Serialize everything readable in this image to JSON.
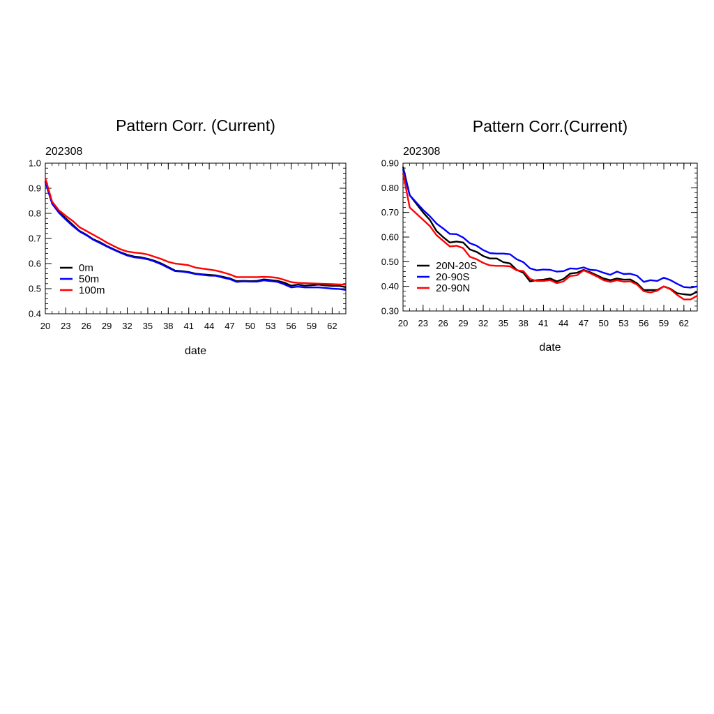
{
  "chart_data": [
    {
      "type": "line",
      "title": "Pattern Corr. (Current)",
      "subtitle": "202308",
      "xlabel": "date",
      "ylabel": "",
      "xlim": [
        20,
        64
      ],
      "ylim": [
        0.4,
        1.0
      ],
      "xticks": [
        20,
        23,
        26,
        29,
        32,
        35,
        38,
        41,
        44,
        47,
        50,
        53,
        56,
        59,
        62
      ],
      "yticks": [
        0.4,
        0.5,
        0.6,
        0.7,
        0.8,
        0.9,
        1.0
      ],
      "ytick_labels": [
        "0.4",
        "0.5",
        "0.6",
        "0.7",
        "0.8",
        "0.9",
        "1.0"
      ],
      "grid": false,
      "legend": "lower-left",
      "x": [
        20,
        21,
        22,
        23,
        24,
        25,
        26,
        27,
        28,
        29,
        30,
        31,
        32,
        33,
        34,
        35,
        36,
        37,
        38,
        39,
        40,
        41,
        42,
        43,
        44,
        45,
        46,
        47,
        48,
        49,
        50,
        51,
        52,
        53,
        54,
        55,
        56,
        57,
        58,
        59,
        60,
        61,
        62,
        63,
        64
      ],
      "series": [
        {
          "name": "0m",
          "color": "#000000",
          "values": [
            0.93,
            0.84,
            0.805,
            0.78,
            0.755,
            0.73,
            0.715,
            0.697,
            0.685,
            0.67,
            0.657,
            0.645,
            0.635,
            0.628,
            0.625,
            0.619,
            0.611,
            0.6,
            0.586,
            0.572,
            0.57,
            0.566,
            0.56,
            0.557,
            0.555,
            0.553,
            0.547,
            0.541,
            0.53,
            0.531,
            0.53,
            0.531,
            0.537,
            0.534,
            0.531,
            0.524,
            0.512,
            0.516,
            0.512,
            0.514,
            0.516,
            0.513,
            0.511,
            0.511,
            0.506
          ]
        },
        {
          "name": "50m",
          "color": "#0000ff",
          "values": [
            0.925,
            0.838,
            0.802,
            0.775,
            0.75,
            0.728,
            0.713,
            0.695,
            0.682,
            0.668,
            0.655,
            0.643,
            0.632,
            0.625,
            0.622,
            0.617,
            0.608,
            0.597,
            0.583,
            0.57,
            0.568,
            0.564,
            0.558,
            0.555,
            0.552,
            0.551,
            0.544,
            0.538,
            0.527,
            0.529,
            0.528,
            0.528,
            0.533,
            0.53,
            0.527,
            0.517,
            0.505,
            0.508,
            0.505,
            0.505,
            0.505,
            0.503,
            0.5,
            0.499,
            0.495
          ]
        },
        {
          "name": "100m",
          "color": "#ff0000",
          "values": [
            0.94,
            0.846,
            0.812,
            0.79,
            0.77,
            0.745,
            0.73,
            0.715,
            0.7,
            0.684,
            0.67,
            0.657,
            0.648,
            0.644,
            0.641,
            0.636,
            0.627,
            0.618,
            0.607,
            0.6,
            0.597,
            0.593,
            0.584,
            0.58,
            0.576,
            0.572,
            0.565,
            0.557,
            0.546,
            0.546,
            0.546,
            0.546,
            0.547,
            0.546,
            0.543,
            0.535,
            0.526,
            0.523,
            0.522,
            0.521,
            0.52,
            0.519,
            0.518,
            0.517,
            0.516
          ]
        }
      ]
    },
    {
      "type": "line",
      "title": "Pattern Corr.(Current)",
      "subtitle": "202308",
      "xlabel": "date",
      "ylabel": "",
      "xlim": [
        20,
        64
      ],
      "ylim": [
        0.3,
        0.9
      ],
      "xticks": [
        20,
        23,
        26,
        29,
        32,
        35,
        38,
        41,
        44,
        47,
        50,
        53,
        56,
        59,
        62
      ],
      "yticks": [
        0.3,
        0.4,
        0.5,
        0.6,
        0.7,
        0.8,
        0.9
      ],
      "ytick_labels": [
        "0.30",
        "0.40",
        "0.50",
        "0.60",
        "0.70",
        "0.80",
        "0.90"
      ],
      "grid": false,
      "legend": "lower-left",
      "x": [
        20,
        21,
        22,
        23,
        24,
        25,
        26,
        27,
        28,
        29,
        30,
        31,
        32,
        33,
        34,
        35,
        36,
        37,
        38,
        39,
        40,
        41,
        42,
        43,
        44,
        45,
        46,
        47,
        48,
        49,
        50,
        51,
        52,
        53,
        54,
        55,
        56,
        57,
        58,
        59,
        60,
        61,
        62,
        63,
        64
      ],
      "series": [
        {
          "name": "20N-20S",
          "color": "#000000",
          "values": [
            0.885,
            0.77,
            0.735,
            0.7,
            0.67,
            0.625,
            0.6,
            0.578,
            0.582,
            0.578,
            0.55,
            0.54,
            0.523,
            0.513,
            0.513,
            0.498,
            0.493,
            0.467,
            0.455,
            0.42,
            0.425,
            0.427,
            0.432,
            0.42,
            0.43,
            0.452,
            0.455,
            0.467,
            0.457,
            0.445,
            0.432,
            0.425,
            0.432,
            0.427,
            0.428,
            0.412,
            0.385,
            0.385,
            0.385,
            0.4,
            0.39,
            0.372,
            0.368,
            0.365,
            0.378
          ]
        },
        {
          "name": "20-90S",
          "color": "#0000ff",
          "values": [
            0.875,
            0.77,
            0.74,
            0.71,
            0.685,
            0.655,
            0.635,
            0.613,
            0.612,
            0.598,
            0.575,
            0.565,
            0.547,
            0.535,
            0.533,
            0.533,
            0.53,
            0.51,
            0.498,
            0.473,
            0.465,
            0.468,
            0.467,
            0.46,
            0.462,
            0.473,
            0.471,
            0.477,
            0.467,
            0.465,
            0.455,
            0.447,
            0.46,
            0.45,
            0.451,
            0.443,
            0.418,
            0.425,
            0.422,
            0.435,
            0.425,
            0.41,
            0.397,
            0.395,
            0.4
          ]
        },
        {
          "name": "20-90N",
          "color": "#ff0000",
          "values": [
            0.86,
            0.72,
            0.695,
            0.67,
            0.645,
            0.608,
            0.585,
            0.562,
            0.565,
            0.555,
            0.52,
            0.51,
            0.495,
            0.485,
            0.483,
            0.483,
            0.481,
            0.465,
            0.462,
            0.43,
            0.422,
            0.422,
            0.425,
            0.413,
            0.42,
            0.442,
            0.445,
            0.465,
            0.453,
            0.44,
            0.425,
            0.418,
            0.425,
            0.419,
            0.42,
            0.407,
            0.38,
            0.375,
            0.382,
            0.4,
            0.388,
            0.365,
            0.347,
            0.347,
            0.362
          ]
        }
      ]
    }
  ]
}
